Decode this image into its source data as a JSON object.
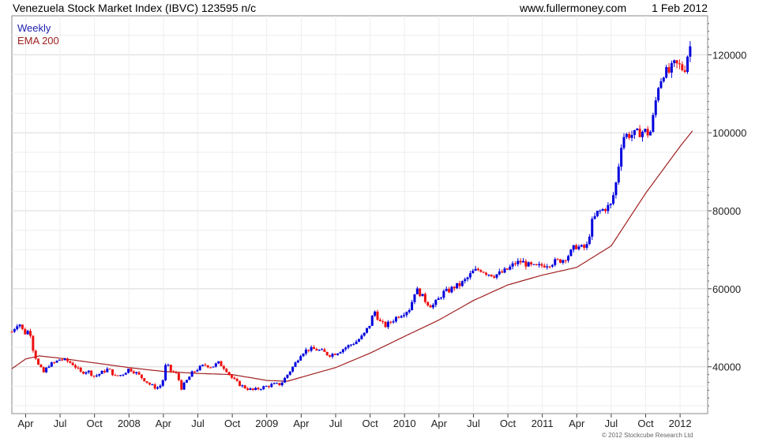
{
  "header": {
    "title": "Venezuela Stock Market Index (IBVC) 123595 n/c",
    "site": "www.fullermoney.com",
    "date": "1 Feb 2012"
  },
  "legend": {
    "weekly": "Weekly",
    "ema": "EMA 200"
  },
  "copyright": "© 2012 Stockcube Research Ltd",
  "colors": {
    "up": "#0000dd",
    "down": "#ee1111",
    "ema": "#a02020",
    "grid": "#d8d8d8",
    "minor_grid": "#eeeeee"
  },
  "chart_data": {
    "type": "candlestick",
    "title": "Venezuela Stock Market Index (IBVC) 123595 n/c",
    "xlabel": "",
    "ylabel": "",
    "y_axis_side": "right",
    "ylim": [
      28000,
      130000
    ],
    "xlim": [
      2007.15,
      2012.2
    ],
    "grid": true,
    "y_ticks": [
      40000,
      60000,
      80000,
      100000,
      120000
    ],
    "x_ticks": [
      {
        "label": "Apr",
        "x": 2007.25
      },
      {
        "label": "Jul",
        "x": 2007.5
      },
      {
        "label": "Oct",
        "x": 2007.75
      },
      {
        "label": "2008",
        "x": 2008.0
      },
      {
        "label": "Apr",
        "x": 2008.25
      },
      {
        "label": "Jul",
        "x": 2008.5
      },
      {
        "label": "Oct",
        "x": 2008.75
      },
      {
        "label": "2009",
        "x": 2009.0
      },
      {
        "label": "Apr",
        "x": 2009.25
      },
      {
        "label": "Jul",
        "x": 2009.5
      },
      {
        "label": "Oct",
        "x": 2009.75
      },
      {
        "label": "2010",
        "x": 2010.0
      },
      {
        "label": "Apr",
        "x": 2010.25
      },
      {
        "label": "Jul",
        "x": 2010.5
      },
      {
        "label": "Oct",
        "x": 2010.75
      },
      {
        "label": "2011",
        "x": 2011.0
      },
      {
        "label": "Apr",
        "x": 2011.25
      },
      {
        "label": "Jul",
        "x": 2011.5
      },
      {
        "label": "Oct",
        "x": 2011.75
      },
      {
        "label": "2012",
        "x": 2012.0
      }
    ],
    "series": [
      {
        "name": "Weekly",
        "price_path": [
          [
            2007.15,
            49000
          ],
          [
            2007.2,
            51500
          ],
          [
            2007.24,
            48500
          ],
          [
            2007.28,
            49500
          ],
          [
            2007.3,
            45000
          ],
          [
            2007.34,
            40500
          ],
          [
            2007.38,
            38500
          ],
          [
            2007.42,
            40500
          ],
          [
            2007.46,
            41000
          ],
          [
            2007.5,
            42000
          ],
          [
            2007.55,
            41500
          ],
          [
            2007.6,
            40500
          ],
          [
            2007.65,
            38500
          ],
          [
            2007.7,
            39000
          ],
          [
            2007.75,
            37500
          ],
          [
            2007.8,
            38500
          ],
          [
            2007.85,
            39500
          ],
          [
            2007.9,
            37500
          ],
          [
            2007.95,
            38000
          ],
          [
            2008.0,
            39500
          ],
          [
            2008.05,
            38500
          ],
          [
            2008.1,
            37000
          ],
          [
            2008.15,
            35500
          ],
          [
            2008.2,
            34500
          ],
          [
            2008.24,
            35500
          ],
          [
            2008.27,
            41000
          ],
          [
            2008.3,
            39000
          ],
          [
            2008.35,
            38000
          ],
          [
            2008.38,
            34500
          ],
          [
            2008.42,
            36500
          ],
          [
            2008.46,
            38500
          ],
          [
            2008.5,
            39500
          ],
          [
            2008.55,
            40500
          ],
          [
            2008.6,
            40000
          ],
          [
            2008.65,
            41000
          ],
          [
            2008.7,
            39500
          ],
          [
            2008.75,
            37000
          ],
          [
            2008.8,
            35500
          ],
          [
            2008.85,
            34500
          ],
          [
            2008.9,
            34000
          ],
          [
            2008.95,
            34500
          ],
          [
            2009.0,
            35000
          ],
          [
            2009.05,
            35500
          ],
          [
            2009.1,
            35500
          ],
          [
            2009.15,
            38000
          ],
          [
            2009.2,
            40500
          ],
          [
            2009.25,
            43500
          ],
          [
            2009.3,
            44500
          ],
          [
            2009.35,
            44500
          ],
          [
            2009.4,
            44000
          ],
          [
            2009.45,
            43000
          ],
          [
            2009.5,
            43500
          ],
          [
            2009.55,
            44500
          ],
          [
            2009.6,
            45500
          ],
          [
            2009.65,
            46500
          ],
          [
            2009.7,
            48000
          ],
          [
            2009.75,
            51000
          ],
          [
            2009.78,
            54500
          ],
          [
            2009.82,
            51500
          ],
          [
            2009.86,
            50500
          ],
          [
            2009.9,
            51500
          ],
          [
            2009.95,
            53000
          ],
          [
            2010.0,
            54000
          ],
          [
            2010.04,
            55000
          ],
          [
            2010.08,
            60000
          ],
          [
            2010.12,
            58500
          ],
          [
            2010.16,
            56500
          ],
          [
            2010.2,
            55500
          ],
          [
            2010.24,
            57000
          ],
          [
            2010.28,
            59000
          ],
          [
            2010.32,
            59500
          ],
          [
            2010.36,
            60500
          ],
          [
            2010.4,
            61000
          ],
          [
            2010.45,
            62500
          ],
          [
            2010.5,
            64500
          ],
          [
            2010.55,
            65000
          ],
          [
            2010.6,
            64000
          ],
          [
            2010.65,
            63500
          ],
          [
            2010.7,
            64000
          ],
          [
            2010.75,
            65000
          ],
          [
            2010.8,
            66500
          ],
          [
            2010.85,
            67000
          ],
          [
            2010.9,
            66000
          ],
          [
            2010.95,
            65500
          ],
          [
            2011.0,
            66000
          ],
          [
            2011.05,
            66500
          ],
          [
            2011.1,
            67000
          ],
          [
            2011.15,
            67500
          ],
          [
            2011.2,
            69000
          ],
          [
            2011.24,
            71000
          ],
          [
            2011.28,
            70500
          ],
          [
            2011.32,
            70500
          ],
          [
            2011.36,
            77000
          ],
          [
            2011.4,
            79500
          ],
          [
            2011.45,
            80500
          ],
          [
            2011.5,
            81500
          ],
          [
            2011.54,
            88000
          ],
          [
            2011.58,
            99000
          ],
          [
            2011.62,
            99500
          ],
          [
            2011.66,
            99500
          ],
          [
            2011.7,
            100000
          ],
          [
            2011.74,
            100500
          ],
          [
            2011.78,
            99500
          ],
          [
            2011.8,
            103000
          ],
          [
            2011.84,
            112000
          ],
          [
            2011.88,
            115500
          ],
          [
            2011.92,
            115500
          ],
          [
            2011.96,
            117500
          ],
          [
            2012.0,
            117000
          ],
          [
            2012.03,
            116000
          ],
          [
            2012.06,
            121000
          ],
          [
            2012.09,
            123595
          ]
        ]
      },
      {
        "name": "EMA 200",
        "values": [
          [
            2007.15,
            39500
          ],
          [
            2007.25,
            42000
          ],
          [
            2007.35,
            42800
          ],
          [
            2007.5,
            42200
          ],
          [
            2007.75,
            41000
          ],
          [
            2008.0,
            39800
          ],
          [
            2008.25,
            38800
          ],
          [
            2008.5,
            38300
          ],
          [
            2008.75,
            38000
          ],
          [
            2009.0,
            36500
          ],
          [
            2009.15,
            36300
          ],
          [
            2009.25,
            37300
          ],
          [
            2009.5,
            39800
          ],
          [
            2009.75,
            43500
          ],
          [
            2010.0,
            47800
          ],
          [
            2010.25,
            52000
          ],
          [
            2010.5,
            57000
          ],
          [
            2010.75,
            61000
          ],
          [
            2011.0,
            63500
          ],
          [
            2011.25,
            65500
          ],
          [
            2011.5,
            71000
          ],
          [
            2011.75,
            84500
          ],
          [
            2012.0,
            96500
          ],
          [
            2012.09,
            100500
          ]
        ]
      }
    ]
  }
}
